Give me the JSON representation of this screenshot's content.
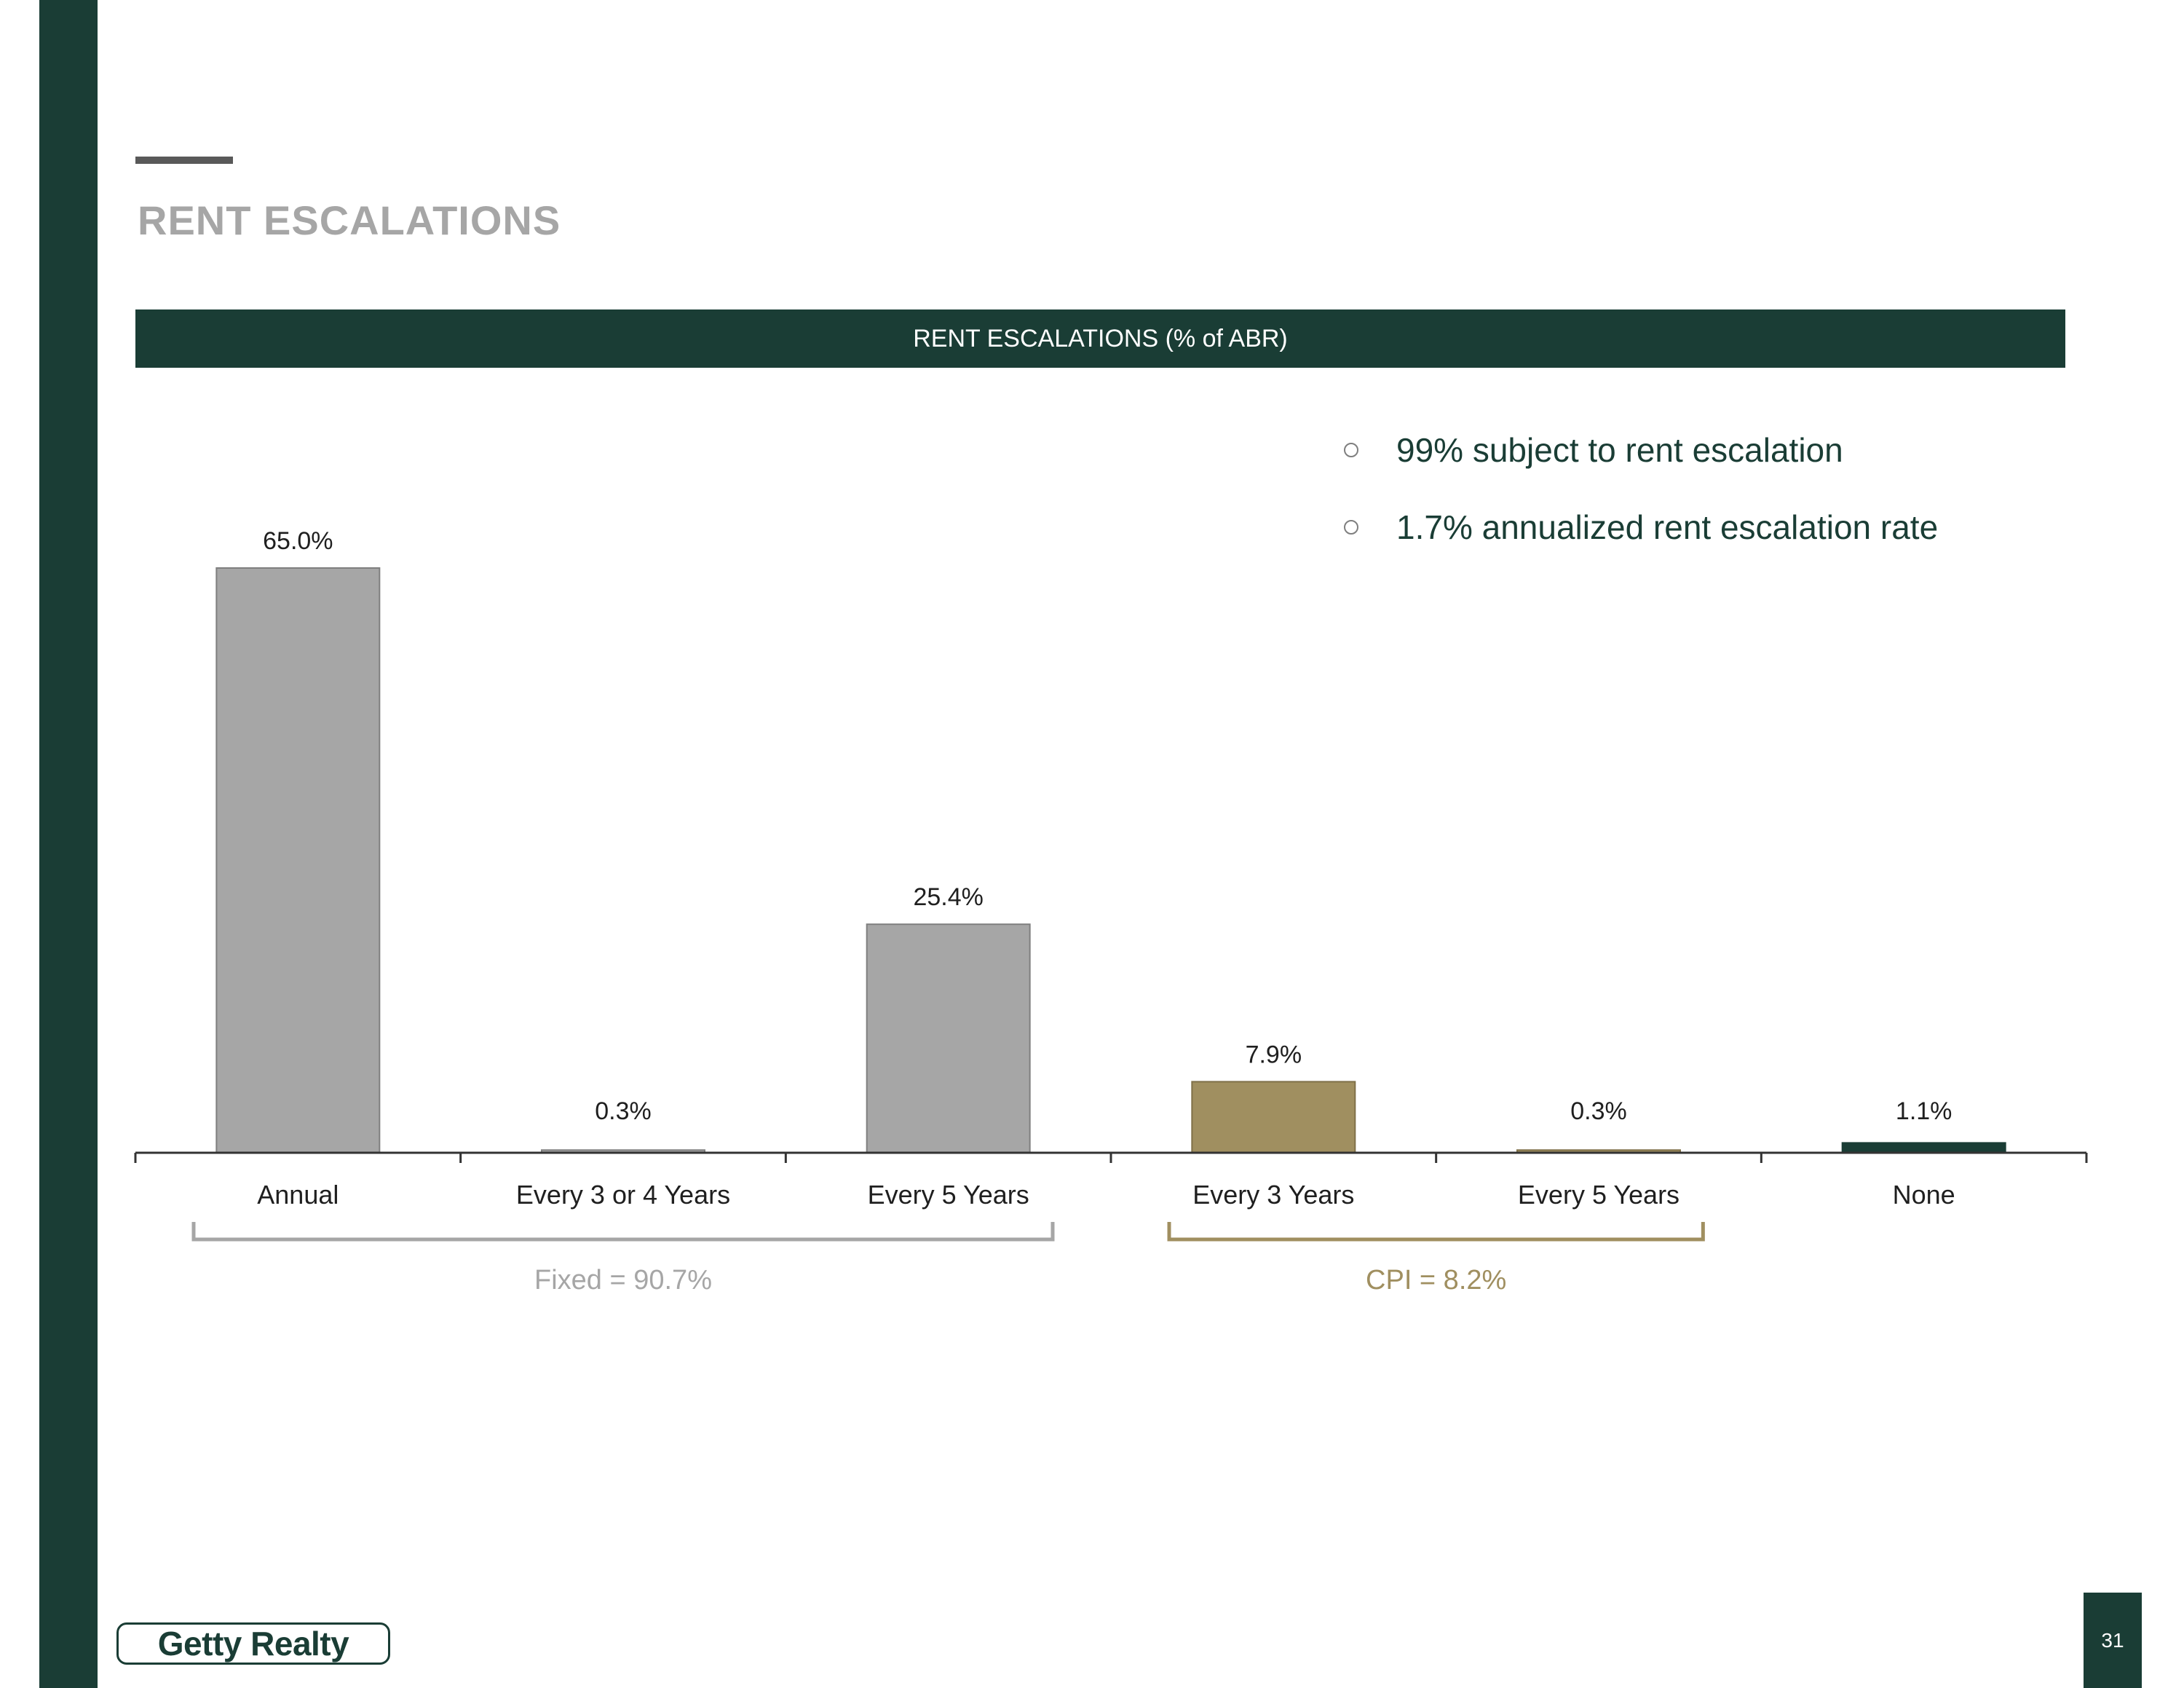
{
  "page": {
    "title": "RENT ESCALATIONS",
    "page_number": "31",
    "logo_text": "Getty Realty"
  },
  "colors": {
    "brand_dark_green": "#1a3d35",
    "grey_bar": "#a6a6a6",
    "gold_bar": "#a08f60",
    "title_grey": "#a6a6a6",
    "accent_line": "#595959",
    "fixed_bracket": "#a6a6a6",
    "cpi_bracket": "#a08f60"
  },
  "bullets": [
    {
      "text": "99% subject to rent escalation",
      "icon": "circle-bullet-icon"
    },
    {
      "text": "1.7% annualized rent escalation rate",
      "icon": "circle-bullet-icon"
    }
  ],
  "chart_data": {
    "type": "bar",
    "title": "RENT ESCALATIONS (% of ABR)",
    "categories": [
      "Annual",
      "Every 3 or 4 Years",
      "Every 5 Years",
      "Every 3 Years",
      "Every 5 Years",
      "None"
    ],
    "values": [
      65.0,
      0.3,
      25.4,
      7.9,
      0.3,
      1.1
    ],
    "data_labels": [
      "65.0%",
      "0.3%",
      "25.4%",
      "7.9%",
      "0.3%",
      "1.1%"
    ],
    "bar_groups": [
      "fixed",
      "fixed",
      "fixed",
      "cpi",
      "cpi",
      "none"
    ],
    "ylim": [
      0,
      65
    ],
    "xlabel": "",
    "ylabel": "",
    "grid": false,
    "groups": [
      {
        "key": "fixed",
        "label": "Fixed = 90.7%",
        "start_index": 0,
        "end_index": 2
      },
      {
        "key": "cpi",
        "label": "CPI = 8.2%",
        "start_index": 3,
        "end_index": 4
      }
    ]
  }
}
